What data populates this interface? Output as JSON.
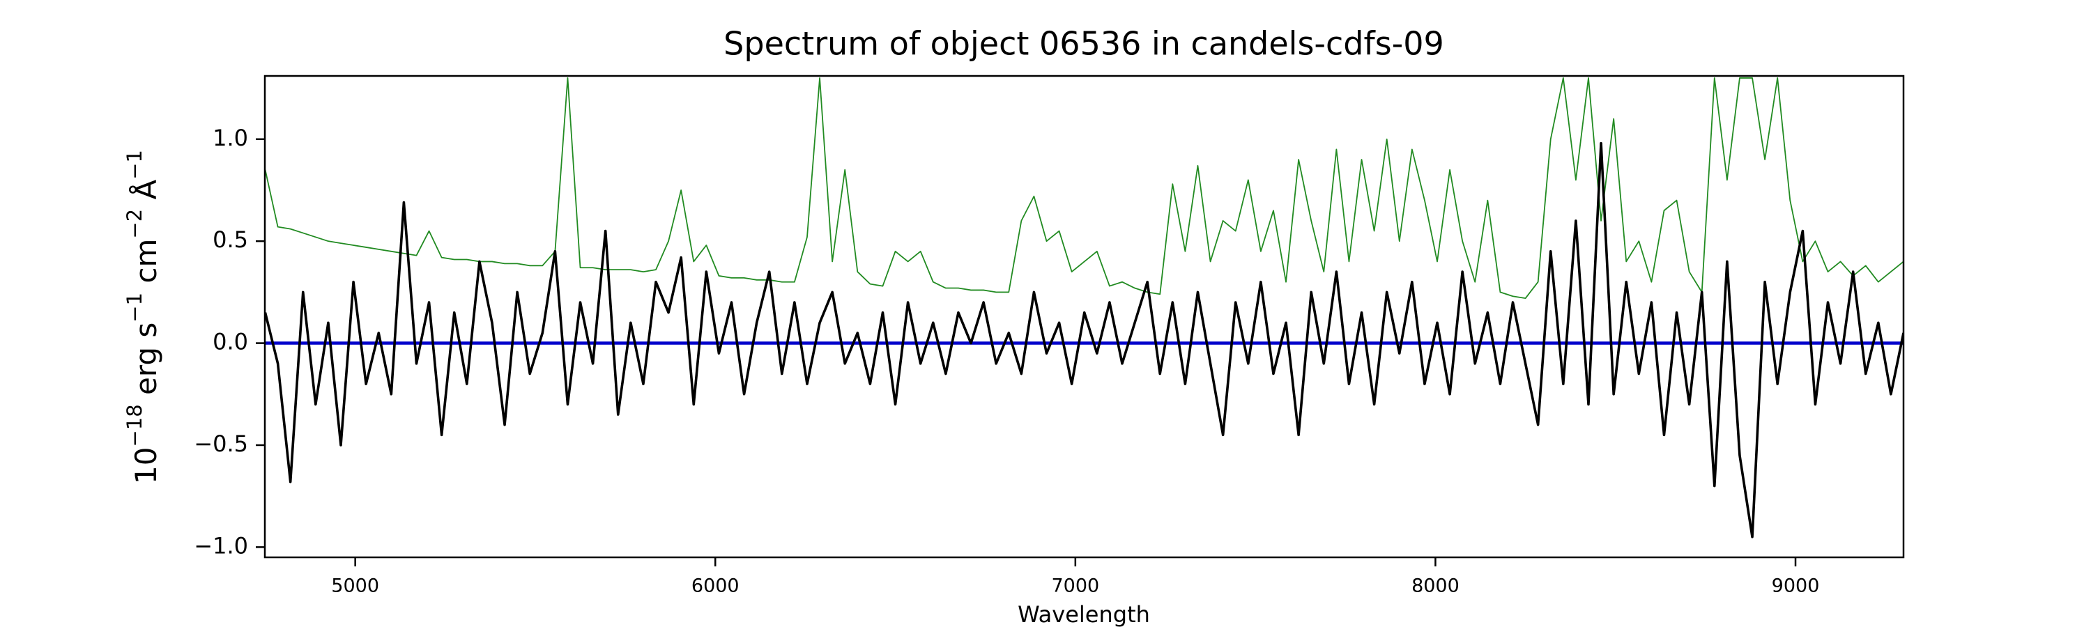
{
  "chart_data": {
    "type": "line",
    "title": "Spectrum of object 06536 in candels-cdfs-09",
    "xlabel": "Wavelength",
    "ylabel": [
      "10",
      "−18",
      " erg s",
      "−1",
      " cm",
      "−2",
      " Å",
      "−1"
    ],
    "xlim": [
      4749,
      9300
    ],
    "ylim": [
      -1.05,
      1.31
    ],
    "xticks": [
      5000,
      6000,
      7000,
      8000,
      9000
    ],
    "yticks": [
      {
        "value": -1.0,
        "label": "−1.0"
      },
      {
        "value": -0.5,
        "label": "−0.5"
      },
      {
        "value": 0.0,
        "label": "0.0"
      },
      {
        "value": 0.5,
        "label": "0.5"
      },
      {
        "value": 1.0,
        "label": "1.0"
      }
    ],
    "x": [
      4750,
      4785,
      4820,
      4855,
      4890,
      4925,
      4960,
      4995,
      5030,
      5065,
      5100,
      5135,
      5170,
      5205,
      5240,
      5275,
      5310,
      5345,
      5380,
      5415,
      5450,
      5485,
      5520,
      5555,
      5590,
      5625,
      5660,
      5695,
      5730,
      5765,
      5800,
      5835,
      5870,
      5905,
      5940,
      5975,
      6010,
      6045,
      6080,
      6115,
      6150,
      6185,
      6220,
      6255,
      6290,
      6325,
      6360,
      6395,
      6430,
      6465,
      6500,
      6535,
      6570,
      6605,
      6640,
      6675,
      6710,
      6745,
      6780,
      6815,
      6850,
      6885,
      6920,
      6955,
      6990,
      7025,
      7060,
      7095,
      7130,
      7165,
      7200,
      7235,
      7270,
      7305,
      7340,
      7375,
      7410,
      7445,
      7480,
      7515,
      7550,
      7585,
      7620,
      7655,
      7690,
      7725,
      7760,
      7795,
      7830,
      7865,
      7900,
      7935,
      7970,
      8005,
      8040,
      8075,
      8110,
      8145,
      8180,
      8215,
      8250,
      8285,
      8320,
      8355,
      8390,
      8425,
      8460,
      8495,
      8530,
      8565,
      8600,
      8635,
      8670,
      8705,
      8740,
      8775,
      8810,
      8845,
      8880,
      8915,
      8950,
      8985,
      9020,
      9055,
      9090,
      9125,
      9160,
      9195,
      9230,
      9265,
      9300
    ],
    "series": [
      {
        "color": "#228b22",
        "width": 1.8,
        "values": [
          0.85,
          0.57,
          0.56,
          0.54,
          0.52,
          0.5,
          0.49,
          0.48,
          0.47,
          0.46,
          0.45,
          0.44,
          0.43,
          0.55,
          0.42,
          0.41,
          0.41,
          0.4,
          0.4,
          0.39,
          0.39,
          0.38,
          0.38,
          0.45,
          1.3,
          0.37,
          0.37,
          0.36,
          0.36,
          0.36,
          0.35,
          0.36,
          0.5,
          0.75,
          0.4,
          0.48,
          0.33,
          0.32,
          0.32,
          0.31,
          0.31,
          0.3,
          0.3,
          0.52,
          1.3,
          0.4,
          0.85,
          0.35,
          0.29,
          0.28,
          0.45,
          0.4,
          0.45,
          0.3,
          0.27,
          0.27,
          0.26,
          0.26,
          0.25,
          0.25,
          0.6,
          0.72,
          0.5,
          0.55,
          0.35,
          0.4,
          0.45,
          0.28,
          0.3,
          0.27,
          0.25,
          0.24,
          0.78,
          0.45,
          0.87,
          0.4,
          0.6,
          0.55,
          0.8,
          0.45,
          0.65,
          0.3,
          0.9,
          0.6,
          0.35,
          0.95,
          0.4,
          0.9,
          0.55,
          1.0,
          0.5,
          0.95,
          0.7,
          0.4,
          0.85,
          0.5,
          0.3,
          0.7,
          0.25,
          0.23,
          0.22,
          0.3,
          1.0,
          1.3,
          0.8,
          1.3,
          0.6,
          1.1,
          0.4,
          0.5,
          0.3,
          0.65,
          0.7,
          0.35,
          0.25,
          1.3,
          0.8,
          1.3,
          1.3,
          0.9,
          1.3,
          0.7,
          0.4,
          0.5,
          0.35,
          0.4,
          0.33,
          0.38,
          0.3,
          0.35,
          0.4
        ]
      },
      {
        "color": "#0000cc",
        "width": 4.5,
        "x": [
          4749,
          9300
        ],
        "values": [
          0,
          0
        ]
      },
      {
        "color": "#000000",
        "width": 3.6,
        "values": [
          0.15,
          -0.1,
          -0.68,
          0.25,
          -0.3,
          0.1,
          -0.5,
          0.3,
          -0.2,
          0.05,
          -0.25,
          0.69,
          -0.1,
          0.2,
          -0.45,
          0.15,
          -0.2,
          0.4,
          0.1,
          -0.4,
          0.25,
          -0.15,
          0.05,
          0.45,
          -0.3,
          0.2,
          -0.1,
          0.55,
          -0.35,
          0.1,
          -0.2,
          0.3,
          0.15,
          0.42,
          -0.3,
          0.35,
          -0.05,
          0.2,
          -0.25,
          0.1,
          0.35,
          -0.15,
          0.2,
          -0.2,
          0.1,
          0.25,
          -0.1,
          0.05,
          -0.2,
          0.15,
          -0.3,
          0.2,
          -0.1,
          0.1,
          -0.15,
          0.15,
          0.0,
          0.2,
          -0.1,
          0.05,
          -0.15,
          0.25,
          -0.05,
          0.1,
          -0.2,
          0.15,
          -0.05,
          0.2,
          -0.1,
          0.1,
          0.3,
          -0.15,
          0.2,
          -0.2,
          0.25,
          -0.1,
          -0.45,
          0.2,
          -0.1,
          0.3,
          -0.15,
          0.1,
          -0.45,
          0.25,
          -0.1,
          0.35,
          -0.2,
          0.15,
          -0.3,
          0.25,
          -0.05,
          0.3,
          -0.2,
          0.1,
          -0.25,
          0.35,
          -0.1,
          0.15,
          -0.2,
          0.2,
          -0.1,
          -0.4,
          0.45,
          -0.2,
          0.6,
          -0.3,
          0.98,
          -0.25,
          0.3,
          -0.15,
          0.2,
          -0.45,
          0.15,
          -0.3,
          0.25,
          -0.7,
          0.4,
          -0.55,
          -0.95,
          0.3,
          -0.2,
          0.25,
          0.55,
          -0.3,
          0.2,
          -0.1,
          0.35,
          -0.15,
          0.1,
          -0.25,
          0.05
        ]
      }
    ]
  }
}
